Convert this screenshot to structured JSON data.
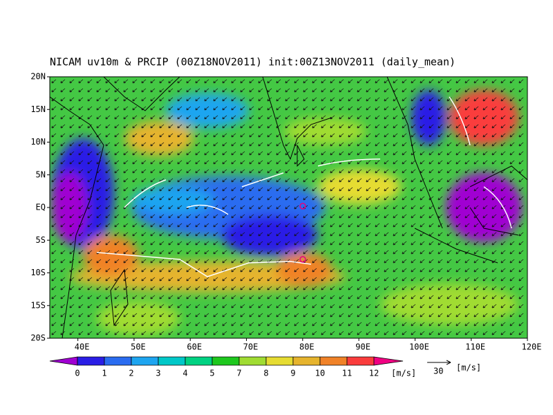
{
  "title": "NICAM uv10m & PRCIP (00Z18NOV2011) init:00Z13NOV2011 (daily_mean)",
  "map": {
    "lon_range": [
      35,
      120
    ],
    "lat_range": [
      -20,
      20
    ],
    "lat_ticks": [
      {
        "value": 20,
        "label": "20N"
      },
      {
        "value": 15,
        "label": "15N"
      },
      {
        "value": 10,
        "label": "10N"
      },
      {
        "value": 5,
        "label": "5N"
      },
      {
        "value": 0,
        "label": "EQ"
      },
      {
        "value": -5,
        "label": "5S"
      },
      {
        "value": -10,
        "label": "10S"
      },
      {
        "value": -15,
        "label": "15S"
      },
      {
        "value": -20,
        "label": "20S"
      }
    ],
    "lon_ticks": [
      {
        "value": 40,
        "label": "40E"
      },
      {
        "value": 50,
        "label": "50E"
      },
      {
        "value": 60,
        "label": "60E"
      },
      {
        "value": 70,
        "label": "70E"
      },
      {
        "value": 80,
        "label": "80E"
      },
      {
        "value": 90,
        "label": "90E"
      },
      {
        "value": 100,
        "label": "100E"
      },
      {
        "value": 110,
        "label": "110E"
      },
      {
        "value": 120,
        "label": "120E"
      }
    ]
  },
  "colorbar": {
    "labels": [
      "0",
      "1",
      "2",
      "3",
      "4",
      "5",
      "7",
      "8",
      "9",
      "10",
      "11",
      "12"
    ],
    "colors": [
      "#a000d2",
      "#2a1ee6",
      "#2a6cf0",
      "#1ea5f0",
      "#00c8c8",
      "#00d282",
      "#1ec81e",
      "#a0dc32",
      "#e6dc32",
      "#e6b42d",
      "#f08228",
      "#fa3c3c",
      "#f00082"
    ],
    "unit": "[m/s]"
  },
  "reference_vector": {
    "value": "30",
    "unit": "[m/s]"
  }
}
